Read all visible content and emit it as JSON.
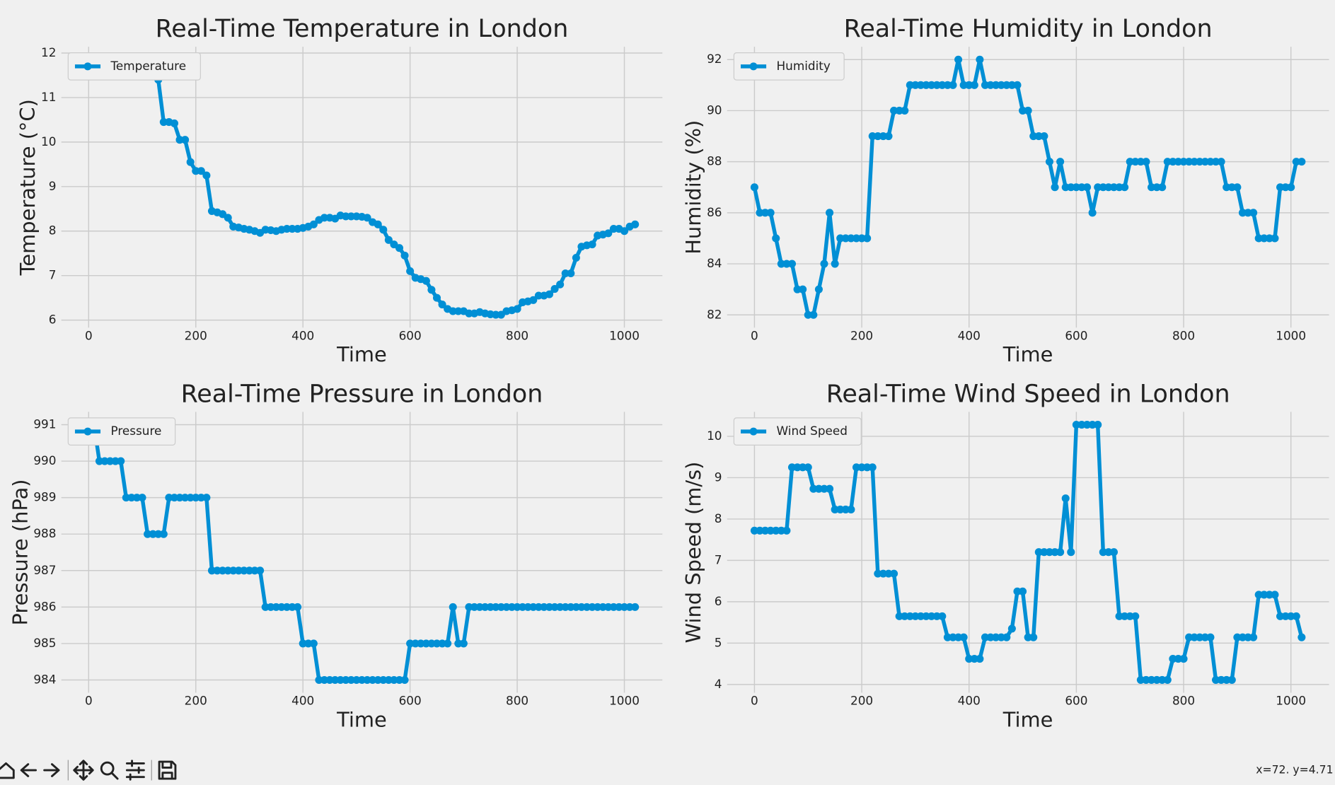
{
  "chart_data": [
    {
      "type": "line",
      "title": "Real-Time Temperature in London",
      "xlabel": "Time",
      "ylabel": "Temperature (°C)",
      "x": [
        0,
        10,
        20,
        30,
        40,
        50,
        60,
        70,
        80,
        90,
        100,
        110,
        120,
        130,
        140,
        150,
        160,
        170,
        180,
        190,
        200,
        210,
        220,
        230,
        240,
        250,
        260,
        270,
        280,
        290,
        300,
        310,
        320,
        330,
        340,
        350,
        360,
        370,
        380,
        390,
        400,
        410,
        420,
        430,
        440,
        450,
        460,
        470,
        480,
        490,
        500,
        510,
        520,
        530,
        540,
        550,
        560,
        570,
        580,
        590,
        600,
        610,
        620,
        630,
        640,
        650,
        660,
        670,
        680,
        690,
        700,
        710,
        720,
        730,
        740,
        750,
        760,
        770,
        780,
        790,
        800,
        810,
        820,
        830,
        840,
        850,
        860,
        870,
        880,
        890,
        900,
        910,
        920,
        930,
        940,
        950,
        960,
        970,
        980,
        990,
        1000,
        1010,
        1020
      ],
      "series": [
        {
          "name": "Temperature",
          "color": "#008fd5",
          "values": [
            11.5,
            11.55,
            11.6,
            11.6,
            11.65,
            11.7,
            11.75,
            11.8,
            11.85,
            11.85,
            11.85,
            11.8,
            11.65,
            11.4,
            10.45,
            10.45,
            10.42,
            10.05,
            10.05,
            9.55,
            9.35,
            9.35,
            9.25,
            8.45,
            8.42,
            8.38,
            8.3,
            8.1,
            8.08,
            8.05,
            8.03,
            8.0,
            7.96,
            8.03,
            8.02,
            8.0,
            8.03,
            8.05,
            8.05,
            8.05,
            8.07,
            8.1,
            8.15,
            8.25,
            8.3,
            8.3,
            8.28,
            8.35,
            8.33,
            8.33,
            8.33,
            8.32,
            8.3,
            8.2,
            8.15,
            8.03,
            7.8,
            7.7,
            7.62,
            7.45,
            7.1,
            6.95,
            6.92,
            6.88,
            6.68,
            6.5,
            6.35,
            6.25,
            6.2,
            6.2,
            6.2,
            6.15,
            6.15,
            6.18,
            6.15,
            6.13,
            6.12,
            6.12,
            6.2,
            6.22,
            6.25,
            6.4,
            6.42,
            6.45,
            6.55,
            6.55,
            6.58,
            6.7,
            6.8,
            7.05,
            7.05,
            7.4,
            7.65,
            7.68,
            7.7,
            7.9,
            7.92,
            7.95,
            8.05,
            8.05,
            8.0,
            8.1,
            8.15
          ]
        }
      ],
      "xlim": [
        -51,
        1071
      ],
      "ylim": [
        5.83,
        12.14
      ],
      "xticks": [
        0,
        200,
        400,
        600,
        800,
        1000
      ],
      "yticks": [
        6,
        7,
        8,
        9,
        10,
        11,
        12
      ],
      "grid": true,
      "legend": "upper left"
    },
    {
      "type": "line",
      "title": "Real-Time Humidity in London",
      "xlabel": "Time",
      "ylabel": "Humidity (%)",
      "x": [
        0,
        10,
        20,
        30,
        40,
        50,
        60,
        70,
        80,
        90,
        100,
        110,
        120,
        130,
        140,
        150,
        160,
        170,
        180,
        190,
        200,
        210,
        220,
        230,
        240,
        250,
        260,
        270,
        280,
        290,
        300,
        310,
        320,
        330,
        340,
        350,
        360,
        370,
        380,
        390,
        400,
        410,
        420,
        430,
        440,
        450,
        460,
        470,
        480,
        490,
        500,
        510,
        520,
        530,
        540,
        550,
        560,
        570,
        580,
        590,
        600,
        610,
        620,
        630,
        640,
        650,
        660,
        670,
        680,
        690,
        700,
        710,
        720,
        730,
        740,
        750,
        760,
        770,
        780,
        790,
        800,
        810,
        820,
        830,
        840,
        850,
        860,
        870,
        880,
        890,
        900,
        910,
        920,
        930,
        940,
        950,
        960,
        970,
        980,
        990,
        1000,
        1010,
        1020
      ],
      "series": [
        {
          "name": "Humidity",
          "color": "#008fd5",
          "values": [
            87,
            86,
            86,
            86,
            85,
            84,
            84,
            84,
            83,
            83,
            82,
            82,
            83,
            84,
            86,
            84,
            85,
            85,
            85,
            85,
            85,
            85,
            89,
            89,
            89,
            89,
            90,
            90,
            90,
            91,
            91,
            91,
            91,
            91,
            91,
            91,
            91,
            91,
            92,
            91,
            91,
            91,
            92,
            91,
            91,
            91,
            91,
            91,
            91,
            91,
            90,
            90,
            89,
            89,
            89,
            88,
            87,
            88,
            87,
            87,
            87,
            87,
            87,
            86,
            87,
            87,
            87,
            87,
            87,
            87,
            88,
            88,
            88,
            88,
            87,
            87,
            87,
            88,
            88,
            88,
            88,
            88,
            88,
            88,
            88,
            88,
            88,
            88,
            87,
            87,
            87,
            86,
            86,
            86,
            85,
            85,
            85,
            85,
            87,
            87,
            87,
            88,
            88
          ]
        }
      ],
      "xlim": [
        -51,
        1071
      ],
      "ylim": [
        81.5,
        92.5
      ],
      "xticks": [
        0,
        200,
        400,
        600,
        800,
        1000
      ],
      "yticks": [
        82,
        84,
        86,
        88,
        90,
        92
      ],
      "grid": true,
      "legend": "upper left"
    },
    {
      "type": "line",
      "title": "Real-Time Pressure in London",
      "xlabel": "Time",
      "ylabel": "Pressure (hPa)",
      "x": [
        0,
        10,
        20,
        30,
        40,
        50,
        60,
        70,
        80,
        90,
        100,
        110,
        120,
        130,
        140,
        150,
        160,
        170,
        180,
        190,
        200,
        210,
        220,
        230,
        240,
        250,
        260,
        270,
        280,
        290,
        300,
        310,
        320,
        330,
        340,
        350,
        360,
        370,
        380,
        390,
        400,
        410,
        420,
        430,
        440,
        450,
        460,
        470,
        480,
        490,
        500,
        510,
        520,
        530,
        540,
        550,
        560,
        570,
        580,
        590,
        600,
        610,
        620,
        630,
        640,
        650,
        660,
        670,
        680,
        690,
        700,
        710,
        720,
        730,
        740,
        750,
        760,
        770,
        780,
        790,
        800,
        810,
        820,
        830,
        840,
        850,
        860,
        870,
        880,
        890,
        900,
        910,
        920,
        930,
        940,
        950,
        960,
        970,
        980,
        990,
        1000,
        1010,
        1020
      ],
      "series": [
        {
          "name": "Pressure",
          "color": "#008fd5",
          "values": [
            991,
            991,
            990,
            990,
            990,
            990,
            990,
            989,
            989,
            989,
            989,
            988,
            988,
            988,
            988,
            989,
            989,
            989,
            989,
            989,
            989,
            989,
            989,
            987,
            987,
            987,
            987,
            987,
            987,
            987,
            987,
            987,
            987,
            986,
            986,
            986,
            986,
            986,
            986,
            986,
            985,
            985,
            985,
            984,
            984,
            984,
            984,
            984,
            984,
            984,
            984,
            984,
            984,
            984,
            984,
            984,
            984,
            984,
            984,
            984,
            985,
            985,
            985,
            985,
            985,
            985,
            985,
            985,
            986,
            985,
            985,
            986,
            986,
            986,
            986,
            986,
            986,
            986,
            986,
            986,
            986,
            986,
            986,
            986,
            986,
            986,
            986,
            986,
            986,
            986,
            986,
            986,
            986,
            986,
            986,
            986,
            986,
            986,
            986,
            986,
            986,
            986,
            986
          ]
        }
      ],
      "xlim": [
        -51,
        1071
      ],
      "ylim": [
        983.65,
        991.35
      ],
      "xticks": [
        0,
        200,
        400,
        600,
        800,
        1000
      ],
      "yticks": [
        984,
        985,
        986,
        987,
        988,
        989,
        990,
        991
      ],
      "grid": true,
      "legend": "upper left"
    },
    {
      "type": "line",
      "title": "Real-Time Wind Speed in London",
      "xlabel": "Time",
      "ylabel": "Wind Speed (m/s)",
      "x": [
        0,
        10,
        20,
        30,
        40,
        50,
        60,
        70,
        80,
        90,
        100,
        110,
        120,
        130,
        140,
        150,
        160,
        170,
        180,
        190,
        200,
        210,
        220,
        230,
        240,
        250,
        260,
        270,
        280,
        290,
        300,
        310,
        320,
        330,
        340,
        350,
        360,
        370,
        380,
        390,
        400,
        410,
        420,
        430,
        440,
        450,
        460,
        470,
        480,
        490,
        500,
        510,
        520,
        530,
        540,
        550,
        560,
        570,
        580,
        590,
        600,
        610,
        620,
        630,
        640,
        650,
        660,
        670,
        680,
        690,
        700,
        710,
        720,
        730,
        740,
        750,
        760,
        770,
        780,
        790,
        800,
        810,
        820,
        830,
        840,
        850,
        860,
        870,
        880,
        890,
        900,
        910,
        920,
        930,
        940,
        950,
        960,
        970,
        980,
        990,
        1000,
        1010,
        1020
      ],
      "series": [
        {
          "name": "Wind Speed",
          "color": "#008fd5",
          "values": [
            7.72,
            7.72,
            7.72,
            7.72,
            7.72,
            7.72,
            7.72,
            9.25,
            9.25,
            9.25,
            9.25,
            8.73,
            8.73,
            8.73,
            8.73,
            8.23,
            8.23,
            8.23,
            8.23,
            9.25,
            9.25,
            9.25,
            9.25,
            6.68,
            6.68,
            6.68,
            6.68,
            5.65,
            5.65,
            5.65,
            5.65,
            5.65,
            5.65,
            5.65,
            5.65,
            5.65,
            5.14,
            5.14,
            5.14,
            5.14,
            4.62,
            4.62,
            4.62,
            5.14,
            5.14,
            5.14,
            5.14,
            5.14,
            5.35,
            6.25,
            6.25,
            5.14,
            5.14,
            7.2,
            7.2,
            7.2,
            7.2,
            7.2,
            8.5,
            7.2,
            10.28,
            10.28,
            10.28,
            10.28,
            10.28,
            7.2,
            7.2,
            7.2,
            5.65,
            5.65,
            5.65,
            5.65,
            4.11,
            4.11,
            4.11,
            4.11,
            4.11,
            4.11,
            4.62,
            4.62,
            4.62,
            5.14,
            5.14,
            5.14,
            5.14,
            5.14,
            4.11,
            4.11,
            4.11,
            4.11,
            5.14,
            5.14,
            5.14,
            5.14,
            6.17,
            6.17,
            6.17,
            6.17,
            5.65,
            5.65,
            5.65,
            5.65,
            5.14
          ]
        }
      ],
      "xlim": [
        -51,
        1071
      ],
      "ylim": [
        3.8,
        10.59
      ],
      "xticks": [
        0,
        200,
        400,
        600,
        800,
        1000
      ],
      "yticks": [
        4,
        5,
        6,
        7,
        8,
        9,
        10
      ],
      "grid": true,
      "legend": "upper left"
    }
  ],
  "toolbar": {
    "status": "x=72. y=4.71"
  }
}
